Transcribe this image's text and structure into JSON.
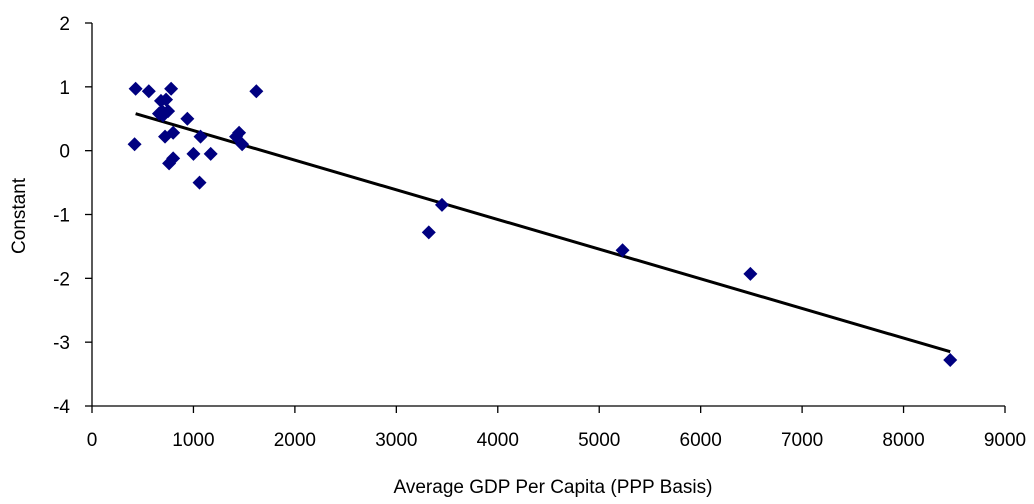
{
  "chart_data": {
    "type": "scatter",
    "xlabel": "Average GDP Per Capita (PPP Basis)",
    "ylabel": "Constant",
    "xlim": [
      0,
      9000
    ],
    "ylim": [
      -4,
      2
    ],
    "xticks": [
      0,
      1000,
      2000,
      3000,
      4000,
      5000,
      6000,
      7000,
      8000,
      9000
    ],
    "yticks": [
      -4,
      -3,
      -2,
      -1,
      0,
      1,
      2
    ],
    "grid": false,
    "legend": "none",
    "marker_color": "#000080",
    "line_color": "#000000",
    "series": [
      {
        "points": [
          [
            430,
            0.97
          ],
          [
            560,
            0.93
          ],
          [
            780,
            0.97
          ],
          [
            1620,
            0.93
          ],
          [
            680,
            0.78
          ],
          [
            730,
            0.8
          ],
          [
            690,
            0.62
          ],
          [
            750,
            0.62
          ],
          [
            660,
            0.58
          ],
          [
            940,
            0.5
          ],
          [
            700,
            0.55
          ],
          [
            800,
            0.28
          ],
          [
            720,
            0.22
          ],
          [
            1070,
            0.22
          ],
          [
            1420,
            0.22
          ],
          [
            1450,
            0.28
          ],
          [
            1480,
            0.1
          ],
          [
            420,
            0.1
          ],
          [
            760,
            -0.2
          ],
          [
            800,
            -0.12
          ],
          [
            1000,
            -0.05
          ],
          [
            1170,
            -0.05
          ],
          [
            1060,
            -0.5
          ],
          [
            3450,
            -0.85
          ],
          [
            3320,
            -1.28
          ],
          [
            5230,
            -1.56
          ],
          [
            6490,
            -1.93
          ],
          [
            8460,
            -3.28
          ]
        ]
      }
    ],
    "trendline": {
      "type": "linear",
      "x": [
        430,
        8460
      ],
      "y": [
        0.58,
        -3.15
      ]
    }
  }
}
